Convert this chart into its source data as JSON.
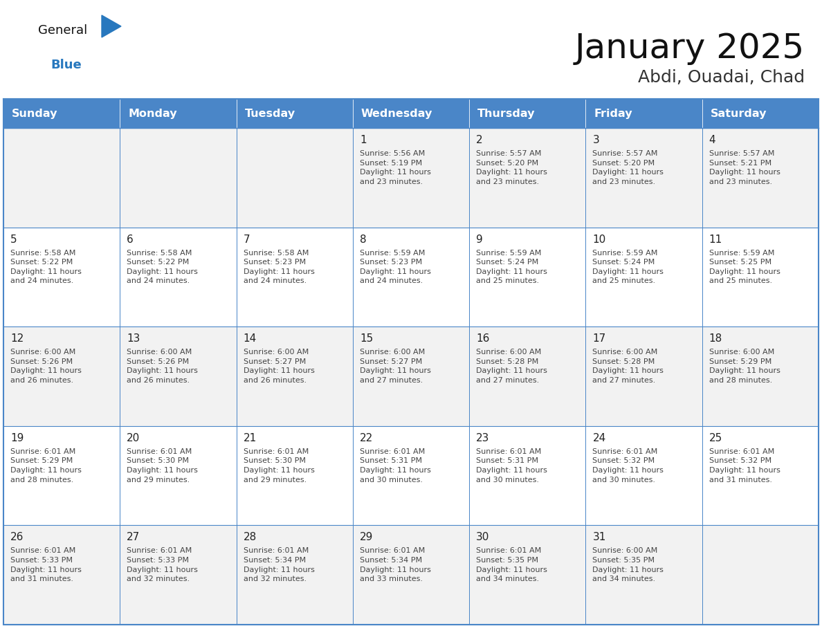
{
  "title": "January 2025",
  "subtitle": "Abdi, Ouadai, Chad",
  "days_of_week": [
    "Sunday",
    "Monday",
    "Tuesday",
    "Wednesday",
    "Thursday",
    "Friday",
    "Saturday"
  ],
  "header_bg": "#4a86c8",
  "header_text": "#ffffff",
  "cell_bg_odd": "#f2f2f2",
  "cell_bg_even": "#ffffff",
  "border_color": "#4a86c8",
  "day_number_color": "#222222",
  "text_color": "#444444",
  "title_color": "#111111",
  "subtitle_color": "#333333",
  "logo_general_color": "#111111",
  "logo_blue_color": "#2878be",
  "weeks": [
    [
      {
        "day": "",
        "info": ""
      },
      {
        "day": "",
        "info": ""
      },
      {
        "day": "",
        "info": ""
      },
      {
        "day": "1",
        "info": "Sunrise: 5:56 AM\nSunset: 5:19 PM\nDaylight: 11 hours\nand 23 minutes."
      },
      {
        "day": "2",
        "info": "Sunrise: 5:57 AM\nSunset: 5:20 PM\nDaylight: 11 hours\nand 23 minutes."
      },
      {
        "day": "3",
        "info": "Sunrise: 5:57 AM\nSunset: 5:20 PM\nDaylight: 11 hours\nand 23 minutes."
      },
      {
        "day": "4",
        "info": "Sunrise: 5:57 AM\nSunset: 5:21 PM\nDaylight: 11 hours\nand 23 minutes."
      }
    ],
    [
      {
        "day": "5",
        "info": "Sunrise: 5:58 AM\nSunset: 5:22 PM\nDaylight: 11 hours\nand 24 minutes."
      },
      {
        "day": "6",
        "info": "Sunrise: 5:58 AM\nSunset: 5:22 PM\nDaylight: 11 hours\nand 24 minutes."
      },
      {
        "day": "7",
        "info": "Sunrise: 5:58 AM\nSunset: 5:23 PM\nDaylight: 11 hours\nand 24 minutes."
      },
      {
        "day": "8",
        "info": "Sunrise: 5:59 AM\nSunset: 5:23 PM\nDaylight: 11 hours\nand 24 minutes."
      },
      {
        "day": "9",
        "info": "Sunrise: 5:59 AM\nSunset: 5:24 PM\nDaylight: 11 hours\nand 25 minutes."
      },
      {
        "day": "10",
        "info": "Sunrise: 5:59 AM\nSunset: 5:24 PM\nDaylight: 11 hours\nand 25 minutes."
      },
      {
        "day": "11",
        "info": "Sunrise: 5:59 AM\nSunset: 5:25 PM\nDaylight: 11 hours\nand 25 minutes."
      }
    ],
    [
      {
        "day": "12",
        "info": "Sunrise: 6:00 AM\nSunset: 5:26 PM\nDaylight: 11 hours\nand 26 minutes."
      },
      {
        "day": "13",
        "info": "Sunrise: 6:00 AM\nSunset: 5:26 PM\nDaylight: 11 hours\nand 26 minutes."
      },
      {
        "day": "14",
        "info": "Sunrise: 6:00 AM\nSunset: 5:27 PM\nDaylight: 11 hours\nand 26 minutes."
      },
      {
        "day": "15",
        "info": "Sunrise: 6:00 AM\nSunset: 5:27 PM\nDaylight: 11 hours\nand 27 minutes."
      },
      {
        "day": "16",
        "info": "Sunrise: 6:00 AM\nSunset: 5:28 PM\nDaylight: 11 hours\nand 27 minutes."
      },
      {
        "day": "17",
        "info": "Sunrise: 6:00 AM\nSunset: 5:28 PM\nDaylight: 11 hours\nand 27 minutes."
      },
      {
        "day": "18",
        "info": "Sunrise: 6:00 AM\nSunset: 5:29 PM\nDaylight: 11 hours\nand 28 minutes."
      }
    ],
    [
      {
        "day": "19",
        "info": "Sunrise: 6:01 AM\nSunset: 5:29 PM\nDaylight: 11 hours\nand 28 minutes."
      },
      {
        "day": "20",
        "info": "Sunrise: 6:01 AM\nSunset: 5:30 PM\nDaylight: 11 hours\nand 29 minutes."
      },
      {
        "day": "21",
        "info": "Sunrise: 6:01 AM\nSunset: 5:30 PM\nDaylight: 11 hours\nand 29 minutes."
      },
      {
        "day": "22",
        "info": "Sunrise: 6:01 AM\nSunset: 5:31 PM\nDaylight: 11 hours\nand 30 minutes."
      },
      {
        "day": "23",
        "info": "Sunrise: 6:01 AM\nSunset: 5:31 PM\nDaylight: 11 hours\nand 30 minutes."
      },
      {
        "day": "24",
        "info": "Sunrise: 6:01 AM\nSunset: 5:32 PM\nDaylight: 11 hours\nand 30 minutes."
      },
      {
        "day": "25",
        "info": "Sunrise: 6:01 AM\nSunset: 5:32 PM\nDaylight: 11 hours\nand 31 minutes."
      }
    ],
    [
      {
        "day": "26",
        "info": "Sunrise: 6:01 AM\nSunset: 5:33 PM\nDaylight: 11 hours\nand 31 minutes."
      },
      {
        "day": "27",
        "info": "Sunrise: 6:01 AM\nSunset: 5:33 PM\nDaylight: 11 hours\nand 32 minutes."
      },
      {
        "day": "28",
        "info": "Sunrise: 6:01 AM\nSunset: 5:34 PM\nDaylight: 11 hours\nand 32 minutes."
      },
      {
        "day": "29",
        "info": "Sunrise: 6:01 AM\nSunset: 5:34 PM\nDaylight: 11 hours\nand 33 minutes."
      },
      {
        "day": "30",
        "info": "Sunrise: 6:01 AM\nSunset: 5:35 PM\nDaylight: 11 hours\nand 34 minutes."
      },
      {
        "day": "31",
        "info": "Sunrise: 6:00 AM\nSunset: 5:35 PM\nDaylight: 11 hours\nand 34 minutes."
      },
      {
        "day": "",
        "info": ""
      }
    ]
  ]
}
